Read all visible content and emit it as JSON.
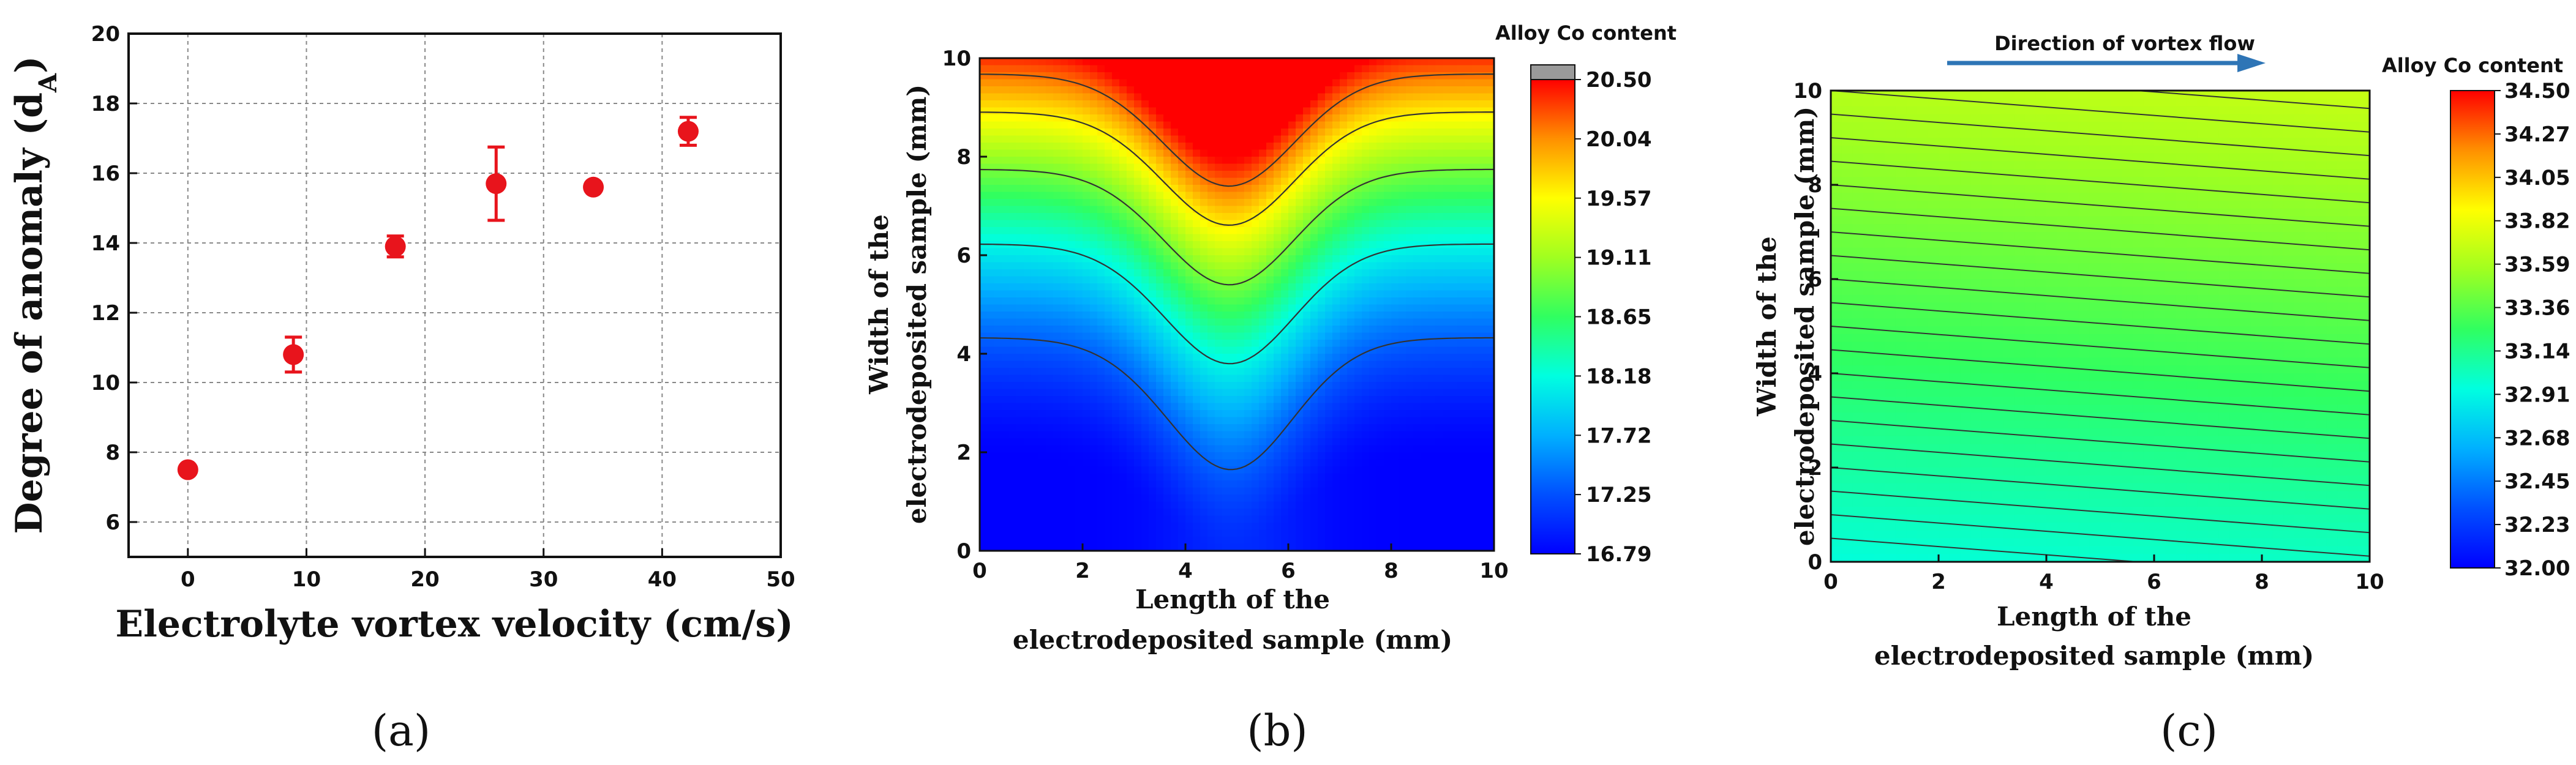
{
  "panel_labels": [
    "(a)",
    "(b)",
    "(c)"
  ],
  "chart_data": [
    {
      "type": "scatter",
      "panel": "(a)",
      "xlabel": "Electrolyte vortex velocity (cm/s)",
      "ylabel_main": "Degree of anomaly (d",
      "ylabel_sub": "A",
      "ylabel_close": ")",
      "xlim": [
        -5,
        50
      ],
      "ylim": [
        5,
        20
      ],
      "xticks": [
        "0",
        "10",
        "20",
        "30",
        "40",
        "50"
      ],
      "yticks": [
        "6",
        "8",
        "10",
        "12",
        "14",
        "16",
        "18",
        "20"
      ],
      "grid": true,
      "color": "#e8141c",
      "points": [
        {
          "x": 0,
          "y": 7.5,
          "err": 0.0
        },
        {
          "x": 8.9,
          "y": 10.8,
          "err": 0.5
        },
        {
          "x": 17.5,
          "y": 13.9,
          "err": 0.3
        },
        {
          "x": 26.0,
          "y": 15.7,
          "err": 1.05
        },
        {
          "x": 34.2,
          "y": 15.6,
          "err": 0.1
        },
        {
          "x": 42.2,
          "y": 17.2,
          "err": 0.4
        }
      ]
    },
    {
      "type": "heatmap",
      "panel": "(b)",
      "xlabel_line1": "Length of the",
      "xlabel_line2": "electrodeposited sample (mm)",
      "ylabel_line1": "Width of the",
      "ylabel_line2": "electrodeposited sample (mm)",
      "xlim": [
        0,
        10
      ],
      "ylim": [
        0,
        10
      ],
      "xticks": [
        "0",
        "2",
        "4",
        "6",
        "8",
        "10"
      ],
      "yticks": [
        "0",
        "2",
        "4",
        "6",
        "8",
        "10"
      ],
      "colorbar_title": "Alloy Co content",
      "colorbar_range": [
        16.79,
        20.5
      ],
      "colorbar_ticks": [
        "20.50",
        "20.04",
        "19.57",
        "19.11",
        "18.65",
        "18.18",
        "17.72",
        "17.25",
        "16.79"
      ]
    },
    {
      "type": "heatmap",
      "panel": "(c)",
      "title": "Direction of vortex flow",
      "xlabel_line1": "Length of the",
      "xlabel_line2": "electrodeposited sample (mm)",
      "ylabel_line1": "Width of the",
      "ylabel_line2": "electrodeposited sample (mm)",
      "xlim": [
        0,
        10
      ],
      "ylim": [
        0,
        10
      ],
      "xticks": [
        "0",
        "2",
        "4",
        "6",
        "8",
        "10"
      ],
      "yticks": [
        "0",
        "2",
        "4",
        "6",
        "8",
        "10"
      ],
      "colorbar_title": "Alloy Co content",
      "colorbar_range": [
        32.0,
        34.5
      ],
      "colorbar_ticks": [
        "34.50",
        "34.27",
        "34.05",
        "33.82",
        "33.59",
        "33.36",
        "33.14",
        "32.91",
        "32.68",
        "32.45",
        "32.23",
        "32.00"
      ],
      "field_range": [
        32.95,
        33.7
      ]
    }
  ]
}
